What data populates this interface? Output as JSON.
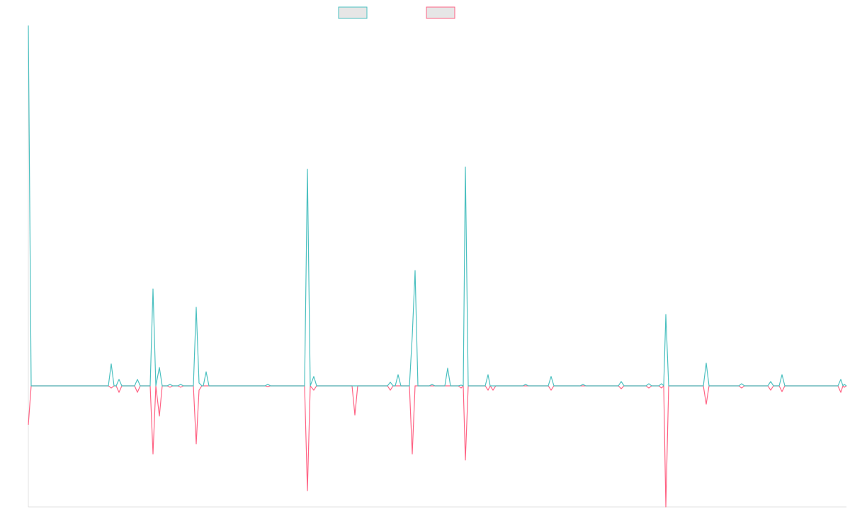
{
  "chart_data": {
    "type": "line",
    "legend": "top",
    "xlim": [
      0,
      1155
    ],
    "ylim": [
      -33.6,
      100
    ],
    "x": [
      0,
      4,
      113,
      117,
      121,
      124,
      128,
      132,
      150,
      154,
      158,
      172,
      176,
      180,
      185,
      189,
      196,
      200,
      204,
      211,
      215,
      219,
      233,
      237,
      241,
      245,
      247,
      251,
      255,
      334,
      338,
      342,
      390,
      394,
      398,
      403,
      407,
      457,
      461,
      465,
      507,
      511,
      515,
      518,
      522,
      526,
      538,
      542,
      546,
      550,
      566,
      570,
      574,
      588,
      592,
      596,
      607,
      611,
      614,
      617,
      621,
      645,
      649,
      652,
      656,
      660,
      698,
      702,
      706,
      734,
      738,
      742,
      779,
      783,
      787,
      833,
      837,
      841,
      872,
      876,
      880,
      890,
      894,
      897,
      900,
      904,
      953,
      957,
      961,
      1003,
      1007,
      1011,
      1044,
      1048,
      1052,
      1060,
      1064,
      1068,
      1143,
      1147,
      1150,
      1152,
      1155
    ],
    "series": [
      {
        "color": "#4bc0c0",
        "values": [
          100,
          0,
          0,
          6.1,
          0,
          0,
          1.8,
          0,
          0,
          1.8,
          0,
          0,
          26.9,
          0,
          5.1,
          0,
          0,
          0.4,
          0,
          0,
          0.4,
          0,
          0,
          21.8,
          0.8,
          0,
          0,
          3.9,
          0,
          0,
          0.4,
          0,
          0,
          60.1,
          0,
          2.6,
          0,
          0,
          0,
          0,
          0,
          1,
          0,
          0,
          3.1,
          0,
          0,
          13.8,
          32,
          0,
          0,
          0.4,
          0,
          0,
          4.9,
          0,
          0,
          0.2,
          0,
          60.7,
          0,
          0,
          3.1,
          0,
          0,
          0,
          0,
          0.4,
          0,
          0,
          2.6,
          0,
          0,
          0.4,
          0,
          0,
          1.2,
          0,
          0,
          0.6,
          0,
          0,
          0.6,
          0,
          19.8,
          0,
          0,
          6.3,
          0,
          0,
          0.6,
          0,
          0,
          1.2,
          0,
          0,
          3.1,
          0,
          0,
          1.8,
          0,
          0.4,
          0
        ]
      },
      {
        "color": "#ff6384",
        "values": [
          -10.8,
          0,
          0,
          -0.6,
          0,
          0,
          -1.8,
          0,
          0,
          -1.8,
          0,
          0,
          -18.9,
          0,
          -8.4,
          0,
          0,
          -0.4,
          0,
          0,
          -0.4,
          0,
          0,
          -16.1,
          -1.2,
          0,
          0,
          0,
          0,
          0,
          -0.2,
          0,
          0,
          -29.1,
          0,
          -1.2,
          0,
          0,
          -8.1,
          0,
          0,
          -1.2,
          0,
          0,
          0,
          0,
          0,
          -18.9,
          0,
          0,
          0,
          0,
          0,
          0,
          0,
          0,
          0,
          -0.6,
          0,
          -20.6,
          0,
          0,
          -1.2,
          0,
          -1.2,
          0,
          0,
          0,
          0,
          0,
          -1.2,
          0,
          0,
          0,
          0,
          0,
          -0.8,
          0,
          0,
          -0.6,
          0,
          0,
          -0.6,
          0,
          -33.6,
          0,
          0,
          -5.1,
          0,
          0,
          -0.6,
          0,
          0,
          -1.2,
          0,
          0,
          -1.6,
          0,
          0,
          -1.8,
          0,
          -0.4,
          0
        ]
      }
    ]
  }
}
